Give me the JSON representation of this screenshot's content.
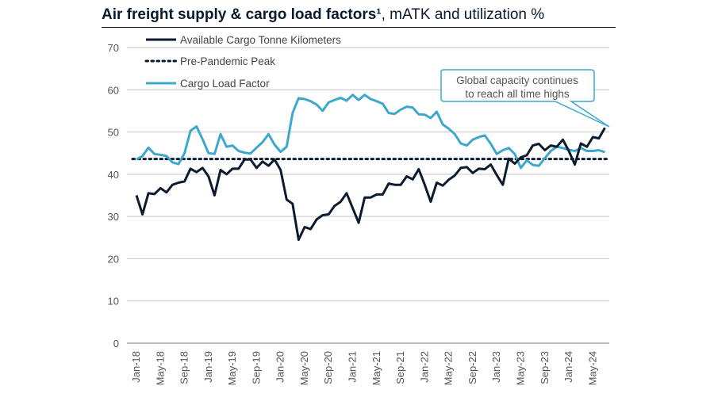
{
  "title_bold": "Air freight supply & cargo load factors¹",
  "title_rest": ", mATK and utilization %",
  "colors": {
    "atk": "#0d1b2e",
    "clf": "#3ea8cc",
    "peak": "#0d1b2e",
    "grid": "#d0d0d0"
  },
  "chart_data": {
    "type": "line",
    "title": "Air freight supply & cargo load factors¹, mATK and utilization %",
    "xlabel": "",
    "ylabel": "",
    "ylim": [
      0,
      70
    ],
    "yticks": [
      "0",
      "10",
      "20",
      "30",
      "40",
      "50",
      "60",
      "70"
    ],
    "grid": true,
    "legend_position": "top-left",
    "x_start": "Jan-18",
    "x_frequency": "monthly",
    "xtick_labels": [
      "Jan-18",
      "May-18",
      "Sep-18",
      "Jan-19",
      "May-19",
      "Sep-19",
      "Jan-20",
      "May-20",
      "Sep-20",
      "Jan-21",
      "May-21",
      "Sep-21",
      "Jan-22",
      "May-22",
      "Sep-22",
      "Jan-23",
      "May-23",
      "Sep-23",
      "Jan-24",
      "May-24"
    ],
    "series": [
      {
        "name": "Available Cargo Tonne Kilometers",
        "style": "solid",
        "values": [
          35,
          30.5,
          35.5,
          35.3,
          36.7,
          35.7,
          37.5,
          38,
          38.3,
          41.3,
          40.5,
          41.5,
          39.5,
          35,
          41,
          40,
          41.3,
          41.3,
          43.5,
          43.5,
          41.5,
          43,
          42,
          43.5,
          41,
          34,
          33,
          24.5,
          27.5,
          27,
          29.3,
          30.3,
          30.5,
          32.5,
          33.5,
          35.5,
          32,
          28.5,
          34.5,
          34.5,
          35.2,
          35.2,
          37.8,
          37.5,
          37.5,
          39.5,
          38.8,
          41.2,
          37.5,
          33.5,
          38,
          37.3,
          38.7,
          39.7,
          41.5,
          41.7,
          40.3,
          41.3,
          41.2,
          42.3,
          39.8,
          37.5,
          43.7,
          42.5,
          44,
          44.5,
          46.8,
          47.2,
          45.7,
          46.8,
          46.5,
          48.2,
          45.5,
          42.3,
          47.3,
          46.5,
          48.8,
          48.5,
          51
        ]
      },
      {
        "name": "Pre-Pandemic Peak",
        "style": "dotted",
        "value": 43.6
      },
      {
        "name": "Cargo Load Factor",
        "style": "solid",
        "values": [
          43.5,
          44.3,
          46.3,
          44.8,
          44.6,
          44.3,
          42.8,
          42.4,
          45,
          50.3,
          51.3,
          48.3,
          45,
          44.8,
          49.5,
          46.5,
          46.8,
          45.5,
          45.1,
          44.9,
          46.3,
          47.6,
          49.5,
          47,
          45.3,
          46.5,
          54.5,
          58,
          57.8,
          57.3,
          56.5,
          55,
          57,
          57.6,
          58.1,
          57.4,
          58.8,
          57.6,
          58.8,
          57.8,
          57.3,
          56.7,
          54.5,
          54.3,
          55.3,
          56,
          55.8,
          54.2,
          54.1,
          53.3,
          54.8,
          51.8,
          50.8,
          49.5,
          47.3,
          46.8,
          48.2,
          48.8,
          49.2,
          47.2,
          44.8,
          45.7,
          46.2,
          44.8,
          41.5,
          43.3,
          42.2,
          42,
          43.8,
          45.5,
          46.5,
          46.2,
          45.8,
          45.5,
          46.2,
          45.5,
          45.5,
          45.7,
          45.2
        ]
      }
    ],
    "annotation": {
      "lines": [
        "Global capacity continues",
        "to reach all time highs"
      ],
      "points_to": "Jul-24 Available Cargo Tonne Kilometers"
    }
  }
}
